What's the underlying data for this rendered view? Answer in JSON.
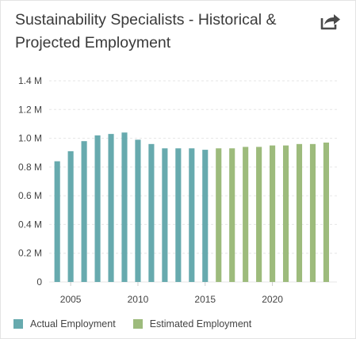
{
  "header": {
    "title_line1": "Sustainability Specialists - Historical &",
    "title_line2": "Projected Employment",
    "share_icon": "share-arrow-icon"
  },
  "colors": {
    "actual": "#67aaae",
    "estimated": "#9dbb7c",
    "grid": "#e6e6e6",
    "axis_text": "#444444"
  },
  "chart_data": {
    "type": "bar",
    "title": "Sustainability Specialists - Historical & Projected Employment",
    "xlabel": "",
    "ylabel": "",
    "ylim": [
      0,
      1.4
    ],
    "y_unit": "M",
    "y_ticks": [
      {
        "value": 0,
        "label": "0"
      },
      {
        "value": 0.2,
        "label": "0.2 M"
      },
      {
        "value": 0.4,
        "label": "0.4 M"
      },
      {
        "value": 0.6,
        "label": "0.6 M"
      },
      {
        "value": 0.8,
        "label": "0.8 M"
      },
      {
        "value": 1.0,
        "label": "1.0 M"
      },
      {
        "value": 1.2,
        "label": "1.2 M"
      },
      {
        "value": 1.4,
        "label": "1.4 M"
      }
    ],
    "x_ticks": [
      {
        "value": 2005,
        "label": "2005"
      },
      {
        "value": 2010,
        "label": "2010"
      },
      {
        "value": 2015,
        "label": "2015"
      },
      {
        "value": 2020,
        "label": "2020"
      }
    ],
    "xlim": [
      2003.4,
      2024.8
    ],
    "grid": true,
    "legend_position": "bottom-left",
    "series": [
      {
        "name": "Actual Employment",
        "color": "#67aaae",
        "points": [
          {
            "x": 2004,
            "y": 0.84
          },
          {
            "x": 2005,
            "y": 0.91
          },
          {
            "x": 2006,
            "y": 0.98
          },
          {
            "x": 2007,
            "y": 1.02
          },
          {
            "x": 2008,
            "y": 1.03
          },
          {
            "x": 2009,
            "y": 1.04
          },
          {
            "x": 2010,
            "y": 0.99
          },
          {
            "x": 2011,
            "y": 0.96
          },
          {
            "x": 2012,
            "y": 0.93
          },
          {
            "x": 2013,
            "y": 0.93
          },
          {
            "x": 2014,
            "y": 0.93
          },
          {
            "x": 2015,
            "y": 0.92
          }
        ]
      },
      {
        "name": "Estimated Employment",
        "color": "#9dbb7c",
        "points": [
          {
            "x": 2016,
            "y": 0.93
          },
          {
            "x": 2017,
            "y": 0.93
          },
          {
            "x": 2018,
            "y": 0.94
          },
          {
            "x": 2019,
            "y": 0.94
          },
          {
            "x": 2020,
            "y": 0.95
          },
          {
            "x": 2021,
            "y": 0.95
          },
          {
            "x": 2022,
            "y": 0.96
          },
          {
            "x": 2023,
            "y": 0.96
          },
          {
            "x": 2024,
            "y": 0.97
          }
        ]
      }
    ]
  },
  "legend": {
    "items": [
      {
        "label": "Actual Employment",
        "color": "#67aaae"
      },
      {
        "label": "Estimated Employment",
        "color": "#9dbb7c"
      }
    ]
  }
}
